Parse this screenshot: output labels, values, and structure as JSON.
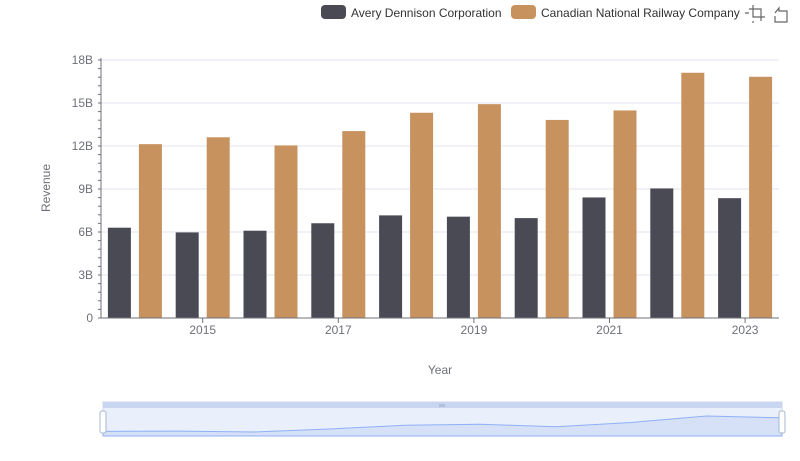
{
  "chart_data": {
    "type": "bar",
    "title": "",
    "xlabel": "Year",
    "ylabel": "Revenue",
    "categories": [
      "2014",
      "2015",
      "2016",
      "2017",
      "2018",
      "2019",
      "2020",
      "2021",
      "2022",
      "2023"
    ],
    "x_tick_labels": [
      "2015",
      "2017",
      "2019",
      "2021",
      "2023"
    ],
    "y_tick_labels": [
      "0",
      "3B",
      "6B",
      "9B",
      "12B",
      "15B",
      "18B"
    ],
    "y_tick_values": [
      0,
      3,
      6,
      9,
      12,
      15,
      18
    ],
    "ylim": [
      0,
      18
    ],
    "units": "billions",
    "grid": true,
    "legend_position": "top-right",
    "series": [
      {
        "name": "Avery Dennison Corporation",
        "color": "#4a4a55",
        "values": [
          6.3,
          5.97,
          6.09,
          6.61,
          7.16,
          7.07,
          6.97,
          8.41,
          9.04,
          8.36
        ]
      },
      {
        "name": "Canadian National Railway Company",
        "color": "#c8925f",
        "values": [
          12.13,
          12.61,
          12.04,
          13.04,
          14.32,
          14.92,
          13.82,
          14.48,
          17.11,
          16.83
        ]
      }
    ]
  },
  "toolbox": {
    "zoom_icon": "zoom-area-icon",
    "restore_icon": "zoom-restore-icon"
  },
  "datazoom": {
    "handle_icon": "drag-handle-icon",
    "colors": {
      "fill": "#dbe4f8",
      "border": "#cdd5e6",
      "line": "#8fb0f7"
    }
  }
}
